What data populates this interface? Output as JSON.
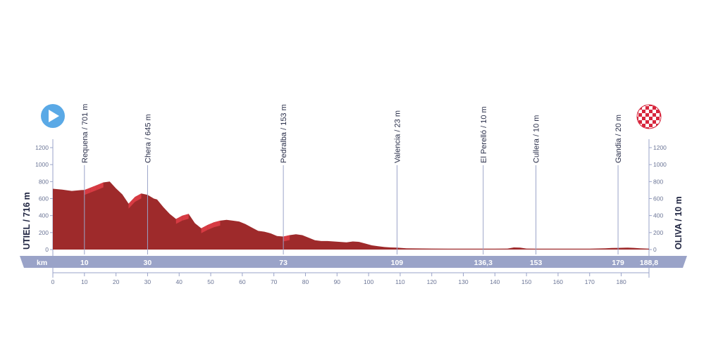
{
  "chart_data": {
    "type": "area",
    "title": "",
    "x_unit": "km",
    "xlim": [
      0,
      188.8
    ],
    "ylim": [
      0,
      1200
    ],
    "y_ticks": [
      0,
      200,
      400,
      600,
      800,
      1000,
      1200
    ],
    "x_ticks": [
      0,
      10,
      20,
      30,
      40,
      50,
      60,
      70,
      80,
      90,
      100,
      110,
      120,
      130,
      140,
      150,
      160,
      170,
      180
    ],
    "km_markers": [
      {
        "km": 10,
        "label": "10"
      },
      {
        "km": 30,
        "label": "30"
      },
      {
        "km": 73,
        "label": "73"
      },
      {
        "km": 109,
        "label": "109"
      },
      {
        "km": 136.3,
        "label": "136,3"
      },
      {
        "km": 153,
        "label": "153"
      },
      {
        "km": 179,
        "label": "179"
      },
      {
        "km": 188.8,
        "label": "188,8"
      }
    ],
    "waypoints": [
      {
        "km": 10,
        "label": "Requena / 701 m"
      },
      {
        "km": 30,
        "label": "Chera / 645 m"
      },
      {
        "km": 73,
        "label": "Pedralba / 153 m"
      },
      {
        "km": 109,
        "label": "Valencia / 23 m"
      },
      {
        "km": 136.3,
        "label": "El Perelló / 10 m"
      },
      {
        "km": 153,
        "label": "Cullera / 10 m"
      },
      {
        "km": 179,
        "label": "Gandia / 20 m"
      }
    ],
    "start_label": "UTIEL / 716 m",
    "finish_label": "OLIVA / 10 m",
    "series": [
      {
        "x": [
          0,
          3,
          6,
          9,
          10,
          12,
          14,
          16,
          18,
          20,
          22,
          24,
          26,
          28,
          30,
          32,
          33,
          35,
          37,
          39,
          41,
          43,
          45,
          47,
          49,
          51,
          53,
          55,
          57,
          59,
          61,
          63,
          65,
          67,
          69,
          71,
          73,
          75,
          77,
          79,
          81,
          83,
          85,
          87,
          89,
          91,
          93,
          95,
          97,
          99,
          101,
          103,
          105,
          107,
          109,
          112,
          120,
          130,
          140,
          144,
          146,
          148,
          150,
          153,
          160,
          170,
          175,
          177,
          179,
          182,
          184,
          186,
          188.8
        ],
        "y": [
          716,
          705,
          690,
          700,
          701,
          730,
          760,
          790,
          800,
          720,
          650,
          540,
          620,
          660,
          645,
          600,
          590,
          500,
          420,
          360,
          400,
          420,
          310,
          250,
          290,
          320,
          340,
          350,
          340,
          330,
          300,
          260,
          220,
          210,
          190,
          160,
          153,
          170,
          180,
          170,
          140,
          110,
          100,
          100,
          95,
          90,
          85,
          95,
          90,
          70,
          50,
          40,
          30,
          25,
          23,
          15,
          12,
          10,
          10,
          12,
          25,
          22,
          12,
          10,
          10,
          10,
          14,
          18,
          20,
          22,
          20,
          14,
          10
        ]
      }
    ]
  }
}
